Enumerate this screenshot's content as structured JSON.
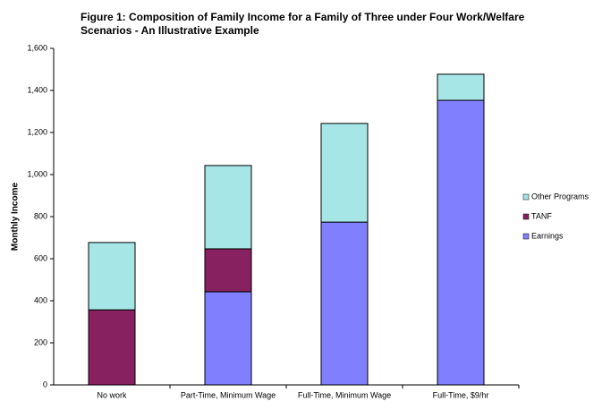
{
  "chart_data": {
    "type": "stacked-bar",
    "title": [
      "Figure 1:  Composition of Family Income for a Family of Three under Four Work/Welfare",
      "Scenarios - An Illustrative Example"
    ],
    "y_label": "Monthly Income",
    "categories": [
      "No work",
      "Part-Time, Minimum Wage",
      "Full-Time, Minimum Wage",
      "Full-Time, $9/hr"
    ],
    "series": [
      {
        "name": "Earnings",
        "color": "#8080ff",
        "values": [
          0,
          443,
          774,
          1353
        ]
      },
      {
        "name": "TANF",
        "color": "#872160",
        "values": [
          357,
          204,
          0,
          0
        ]
      },
      {
        "name": "Other Programs",
        "color": "#a6e6e6",
        "values": [
          320,
          396,
          469,
          124
        ]
      }
    ],
    "ylim": [
      0,
      1600
    ],
    "yticks": [
      0,
      200,
      400,
      600,
      800,
      {
        "value": 1000,
        "label": "1,000"
      },
      {
        "value": 1200,
        "label": "1,200"
      },
      {
        "value": 1400,
        "label": "1,400"
      },
      {
        "value": 1600,
        "label": "1,600"
      }
    ],
    "grid": false,
    "legend": "right"
  }
}
